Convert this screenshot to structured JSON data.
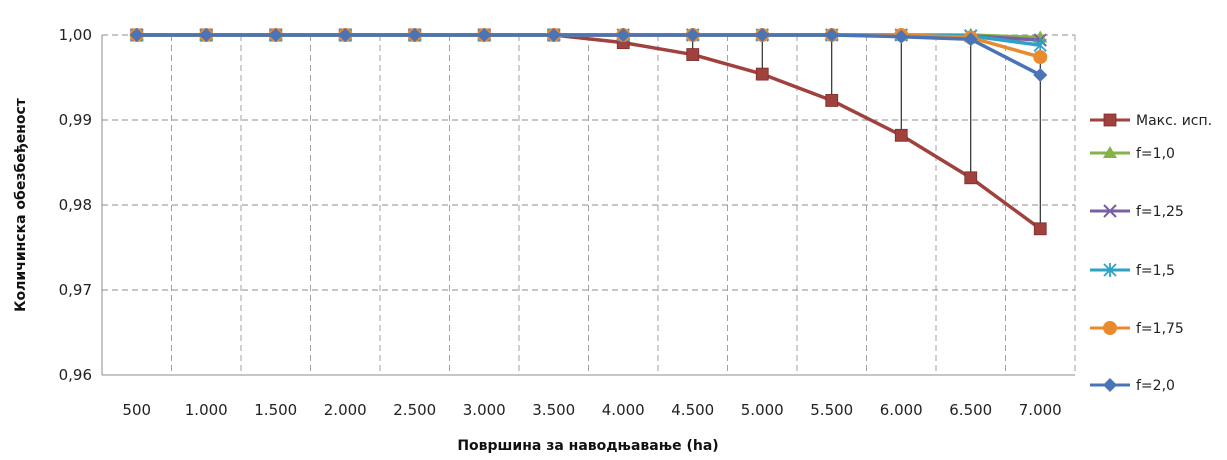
{
  "chart_data": {
    "type": "line",
    "title": "",
    "xlabel": "Површина за наводњавање  (ha)",
    "ylabel": "Количинска обезбеђеност",
    "categories": [
      "500",
      "1.000",
      "1.500",
      "2.000",
      "2.500",
      "3.000",
      "3.500",
      "4.000",
      "4.500",
      "5.000",
      "5.500",
      "6.000",
      "6.500",
      "7.000"
    ],
    "y_ticks": [
      "0,96",
      "0,97",
      "0,98",
      "0,99",
      "1,00"
    ],
    "ylim": [
      0.96,
      1.0
    ],
    "grid": true,
    "legend_position": "right",
    "drop_lines": true,
    "series": [
      {
        "name": "Макс. исп.",
        "color": "#a0413e",
        "marker": "square",
        "values": [
          1,
          1,
          1,
          1,
          1,
          1,
          1,
          0.9991,
          0.9977,
          0.9954,
          0.9923,
          0.9882,
          0.9832,
          0.9772
        ]
      },
      {
        "name": "f=1,0",
        "color": "#86b24a",
        "marker": "triangle",
        "values": [
          1,
          1,
          1,
          1,
          1,
          1,
          1,
          1,
          1,
          1,
          1,
          1,
          1,
          0.9997
        ]
      },
      {
        "name": "f=1,25",
        "color": "#7a5fa6",
        "marker": "x",
        "values": [
          1,
          1,
          1,
          1,
          1,
          1,
          1,
          1,
          1,
          1,
          1,
          1,
          0.9999,
          0.9994
        ]
      },
      {
        "name": "f=1,5",
        "color": "#2ea2c5",
        "marker": "star",
        "values": [
          1,
          1,
          1,
          1,
          1,
          1,
          1,
          1,
          1,
          1,
          1,
          1,
          0.9999,
          0.9988
        ]
      },
      {
        "name": "f=1,75",
        "color": "#e98a2f",
        "marker": "circle",
        "values": [
          1,
          1,
          1,
          1,
          1,
          1,
          1,
          1,
          1,
          1,
          1,
          1,
          0.9997,
          0.9974
        ]
      },
      {
        "name": "f=2,0",
        "color": "#4a74b5",
        "marker": "diamond",
        "values": [
          1,
          1,
          1,
          1,
          1,
          1,
          1,
          1,
          1,
          1,
          1,
          0.9998,
          0.9995,
          0.9953
        ]
      }
    ]
  }
}
